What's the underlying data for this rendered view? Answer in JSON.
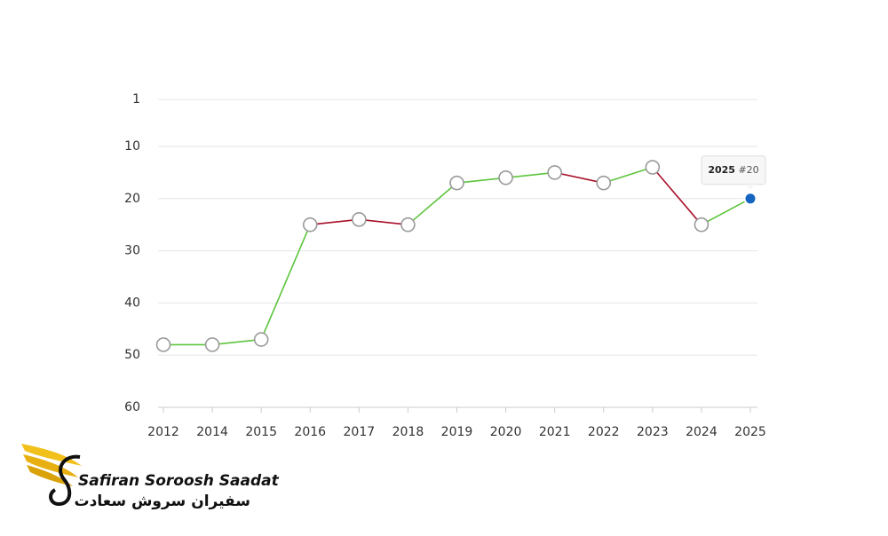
{
  "chart_data": {
    "type": "line",
    "categories": [
      "2012",
      "2014",
      "2015",
      "2016",
      "2017",
      "2018",
      "2019",
      "2020",
      "2021",
      "2022",
      "2023",
      "2024",
      "2025"
    ],
    "values": [
      48,
      48,
      47,
      25,
      24,
      25,
      17,
      16,
      15,
      17,
      14,
      25,
      20
    ],
    "segment_colors": [
      "#5cc43c",
      "#5cc43c",
      "#5cc43c",
      "#a8102a",
      "#a8102a",
      "#5cc43c",
      "#5cc43c",
      "#5cc43c",
      "#a8102a",
      "#5cc43c",
      "#a8102a",
      "#5cc43c"
    ],
    "marker_color": "#9a9a9a",
    "highlight_color": "#1565c0",
    "ylim": [
      0,
      60
    ],
    "y_inverted": true,
    "yticks": [
      1,
      10,
      20,
      30,
      40,
      50,
      60
    ],
    "grid": true,
    "tooltip": {
      "title": "2025",
      "label": "#20"
    }
  },
  "logo": {
    "name_en": "Safiran Soroosh Saadat",
    "name_fa": "سفیران سروش سعادت"
  }
}
